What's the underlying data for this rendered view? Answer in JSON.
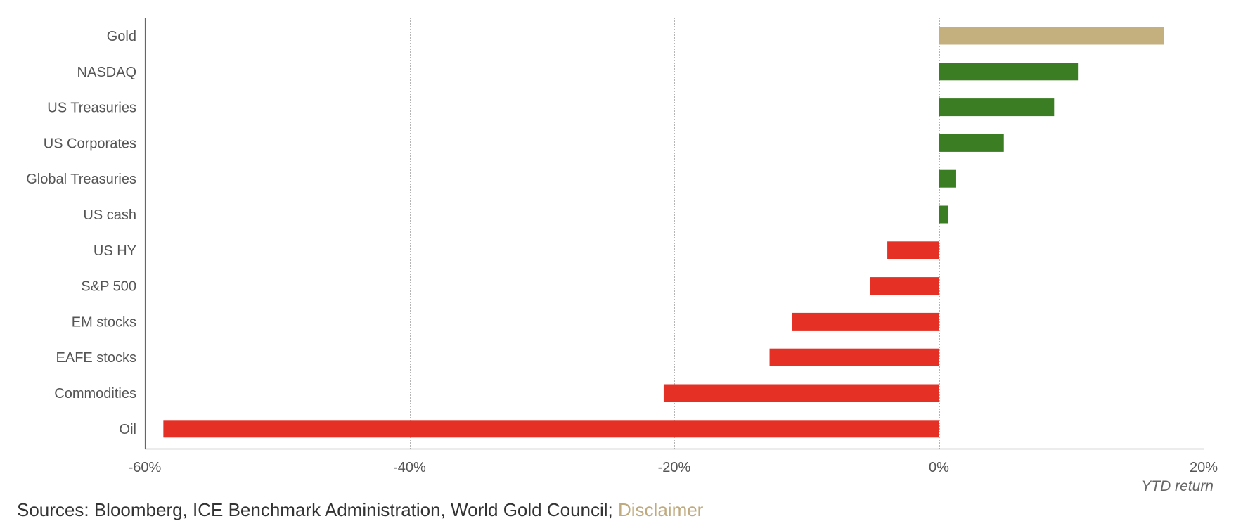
{
  "chart_data": {
    "type": "bar",
    "orientation": "horizontal",
    "categories": [
      "Gold",
      "NASDAQ",
      "US Treasuries",
      "US Corporates",
      "Global Treasuries",
      "US cash",
      "US HY",
      "S&P 500",
      "EM stocks",
      "EAFE stocks",
      "Commodities",
      "Oil"
    ],
    "values": [
      17.0,
      10.5,
      8.7,
      4.9,
      1.3,
      0.7,
      -3.9,
      -5.2,
      -11.1,
      -12.8,
      -20.8,
      -58.6
    ],
    "xlabel": "YTD return",
    "xlim": [
      -60,
      20
    ],
    "xticks": [
      -60,
      -40,
      -20,
      0,
      20
    ],
    "xtick_labels": [
      "-60%",
      "-40%",
      "-20%",
      "0%",
      "20%"
    ],
    "grid": true,
    "colors": {
      "highlight": "#c4b07f",
      "positive": "#3a7d22",
      "negative": "#e53125"
    },
    "highlight_category": "Gold"
  },
  "footer": {
    "sources_text": "Sources: Bloomberg, ICE Benchmark Administration, World Gold Council; ",
    "disclaimer_label": "Disclaimer"
  }
}
